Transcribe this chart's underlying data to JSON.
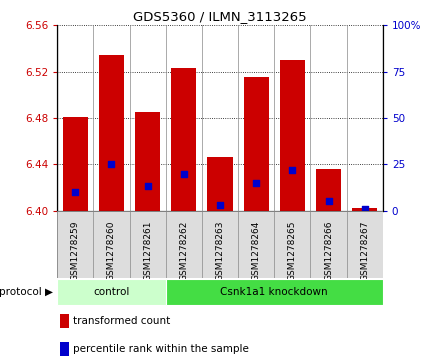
{
  "title": "GDS5360 / ILMN_3113265",
  "samples": [
    "GSM1278259",
    "GSM1278260",
    "GSM1278261",
    "GSM1278262",
    "GSM1278263",
    "GSM1278264",
    "GSM1278265",
    "GSM1278266",
    "GSM1278267"
  ],
  "transformed_counts": [
    6.481,
    6.534,
    6.485,
    6.523,
    6.446,
    6.515,
    6.53,
    6.436,
    6.402
  ],
  "percentile_ranks": [
    10,
    25,
    13,
    20,
    3,
    15,
    22,
    5,
    1
  ],
  "ymin": 6.4,
  "ymax": 6.56,
  "yticks_left": [
    6.4,
    6.44,
    6.48,
    6.52,
    6.56
  ],
  "yticks_right": [
    0,
    25,
    50,
    75,
    100
  ],
  "bar_color": "#cc0000",
  "marker_color": "#0000cc",
  "bar_bottom": 6.4,
  "protocol_groups": [
    {
      "label": "control",
      "start": 0,
      "end": 3,
      "color": "#ccffcc"
    },
    {
      "label": "Csnk1a1 knockdown",
      "start": 3,
      "end": 9,
      "color": "#44dd44"
    }
  ],
  "legend_items": [
    {
      "color": "#cc0000",
      "label": "transformed count"
    },
    {
      "color": "#0000cc",
      "label": "percentile rank within the sample"
    }
  ],
  "bg_color": "#ffffff",
  "grid_color": "#000000",
  "tick_color_left": "#cc0000",
  "tick_color_right": "#0000cc",
  "bar_width": 0.7,
  "marker_size": 25,
  "sample_box_color": "#dddddd"
}
